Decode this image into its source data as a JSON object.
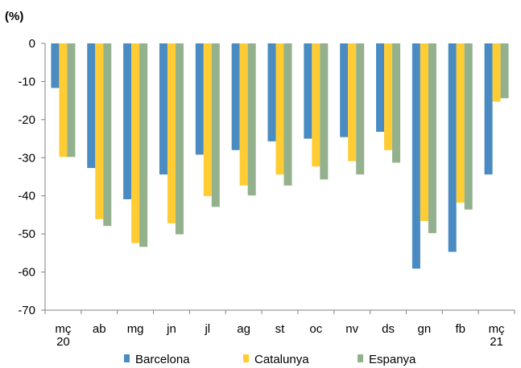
{
  "chart_data": {
    "type": "bar",
    "unit_label": "(%)",
    "categories": [
      [
        "mç",
        "20"
      ],
      [
        "ab"
      ],
      [
        "mg"
      ],
      [
        "jn"
      ],
      [
        "jl"
      ],
      [
        "ag"
      ],
      [
        "st"
      ],
      [
        "oc"
      ],
      [
        "nv"
      ],
      [
        "ds"
      ],
      [
        "gn"
      ],
      [
        "fb"
      ],
      [
        "mç",
        "21"
      ]
    ],
    "series": [
      {
        "name": "Barcelona",
        "color": "#4A8BC2",
        "values": [
          -11.7,
          -32.7,
          -40.9,
          -34.4,
          -29.2,
          -28.0,
          -25.7,
          -25.0,
          -24.6,
          -23.2,
          -59.1,
          -54.7,
          -34.4
        ]
      },
      {
        "name": "Catalunya",
        "color": "#FFCC33",
        "values": [
          -29.8,
          -46.1,
          -52.4,
          -47.2,
          -40.1,
          -37.3,
          -34.4,
          -32.3,
          -30.9,
          -28.0,
          -46.6,
          -41.8,
          -15.3
        ]
      },
      {
        "name": "Espanya",
        "color": "#93B18C",
        "values": [
          -29.8,
          -47.9,
          -53.4,
          -50.1,
          -42.9,
          -39.9,
          -37.3,
          -35.7,
          -34.4,
          -31.3,
          -49.8,
          -43.6,
          -14.4
        ]
      }
    ],
    "yticks": [
      0,
      -10,
      -20,
      -30,
      -40,
      -50,
      -60,
      -70
    ],
    "ylim": [
      -70,
      0
    ],
    "grid": false,
    "legend": "bottom"
  }
}
